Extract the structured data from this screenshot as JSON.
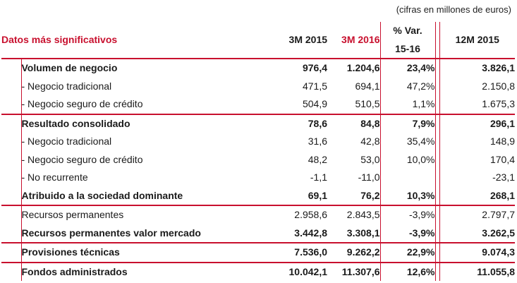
{
  "note": "(cifras en millones de euros)",
  "header": {
    "title": "Datos más significativos",
    "col_3m2015": "3M 2015",
    "col_3m2016": "3M 2016",
    "col_var_line1": "% Var.",
    "col_var_line2": "15-16",
    "col_12m2015": "12M 2015"
  },
  "rows": [
    {
      "label": "Volumen de negocio",
      "v3m15": "976,4",
      "v3m16": "1.204,6",
      "var": "23,4%",
      "v12m15": "3.826,1"
    },
    {
      "label": "- Negocio tradicional",
      "v3m15": "471,5",
      "v3m16": "694,1",
      "var": "47,2%",
      "v12m15": "2.150,8"
    },
    {
      "label": "- Negocio seguro de crédito",
      "v3m15": "504,9",
      "v3m16": "510,5",
      "var": "1,1%",
      "v12m15": "1.675,3"
    },
    {
      "label": "Resultado consolidado",
      "v3m15": "78,6",
      "v3m16": "84,8",
      "var": "7,9%",
      "v12m15": "296,1"
    },
    {
      "label": "- Negocio tradicional",
      "v3m15": "31,6",
      "v3m16": "42,8",
      "var": "35,4%",
      "v12m15": "148,9"
    },
    {
      "label": "- Negocio seguro de crédito",
      "v3m15": "48,2",
      "v3m16": "53,0",
      "var": "10,0%",
      "v12m15": "170,4"
    },
    {
      "label": "- No recurrente",
      "v3m15": "-1,1",
      "v3m16": "-11,0",
      "var": "",
      "v12m15": "-23,1"
    },
    {
      "label": "Atribuido a la sociedad dominante",
      "v3m15": "69,1",
      "v3m16": "76,2",
      "var": "10,3%",
      "v12m15": "268,1"
    },
    {
      "label": "Recursos permanentes",
      "v3m15": "2.958,6",
      "v3m16": "2.843,5",
      "var": "-3,9%",
      "v12m15": "2.797,7"
    },
    {
      "label": "Recursos permanentes valor mercado",
      "v3m15": "3.442,8",
      "v3m16": "3.308,1",
      "var": "-3,9%",
      "v12m15": "3.262,5"
    },
    {
      "label": "Provisiones técnicas",
      "v3m15": "7.536,0",
      "v3m16": "9.262,2",
      "var": "22,9%",
      "v12m15": "9.074,3"
    },
    {
      "label": "Fondos administrados",
      "v3m15": "10.042,1",
      "v3m16": "11.307,6",
      "var": "12,6%",
      "v12m15": "11.055,8"
    }
  ]
}
